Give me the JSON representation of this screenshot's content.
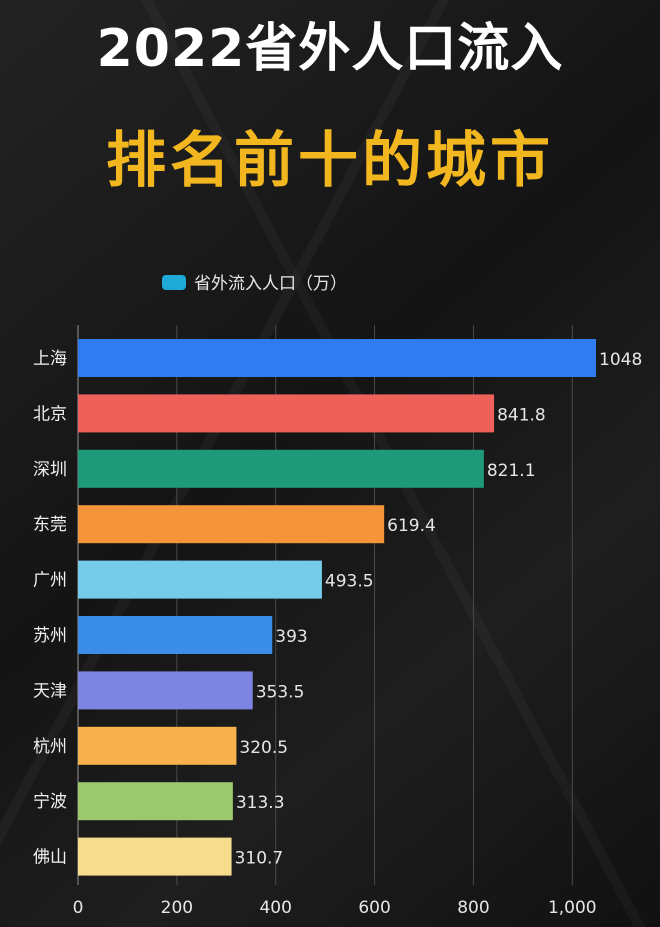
{
  "title": "2022省外人口流入",
  "subtitle": "排名前十的城市",
  "chart_data": {
    "type": "bar",
    "orientation": "horizontal",
    "legend": {
      "label": "省外流入人口（万）",
      "color": "#1fa9d6",
      "placement": "top-left"
    },
    "categories": [
      "上海",
      "北京",
      "深圳",
      "东莞",
      "广州",
      "苏州",
      "天津",
      "杭州",
      "宁波",
      "佛山"
    ],
    "values": [
      1048,
      841.8,
      821.1,
      619.4,
      493.5,
      393,
      353.5,
      320.5,
      313.3,
      310.7
    ],
    "value_labels": [
      "1048",
      "841.8",
      "821.1",
      "619.4",
      "493.5",
      "393",
      "353.5",
      "320.5",
      "313.3",
      "310.7"
    ],
    "bar_colors": [
      "#2f7bf0",
      "#f0605a",
      "#1f9a78",
      "#f5953a",
      "#74cbea",
      "#3a8ee8",
      "#7d84e2",
      "#f7b24e",
      "#9cc96d",
      "#f7dc8e"
    ],
    "x_ticks": [
      0,
      200,
      400,
      600,
      800,
      1000
    ],
    "x_tick_labels": [
      "0",
      "200",
      "400",
      "600",
      "800",
      "1,000"
    ],
    "xlim": [
      0,
      1050
    ],
    "grid": "vertical"
  }
}
